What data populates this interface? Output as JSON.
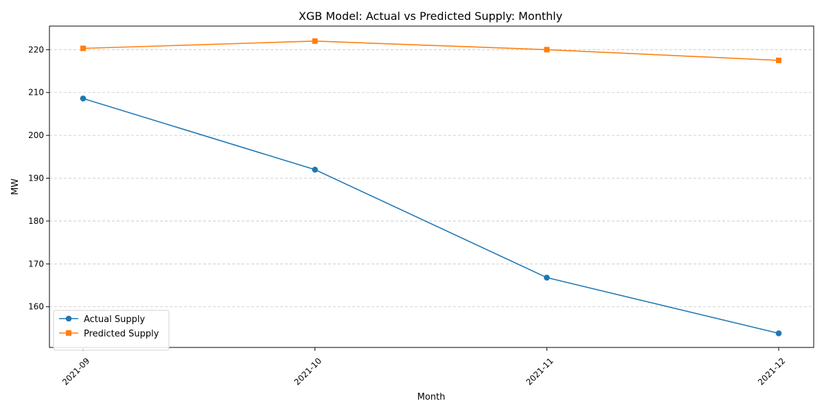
{
  "chart_data": {
    "type": "line",
    "title": "XGB Model: Actual vs Predicted Supply: Monthly",
    "xlabel": "Month",
    "ylabel": "MW",
    "categories": [
      "2021-09",
      "2021-10",
      "2021-11",
      "2021-12"
    ],
    "ylim": [
      150.5,
      225.5
    ],
    "yticks": [
      160,
      170,
      180,
      190,
      200,
      210,
      220
    ],
    "grid": "y",
    "legend_position": "lower-left",
    "series": [
      {
        "name": "Actual Supply",
        "values": [
          208.6,
          192.0,
          166.8,
          153.8
        ],
        "color": "#1f77b4",
        "marker": "circle"
      },
      {
        "name": "Predicted Supply",
        "values": [
          220.3,
          222.0,
          220.0,
          217.5
        ],
        "color": "#ff7f0e",
        "marker": "square"
      }
    ]
  }
}
